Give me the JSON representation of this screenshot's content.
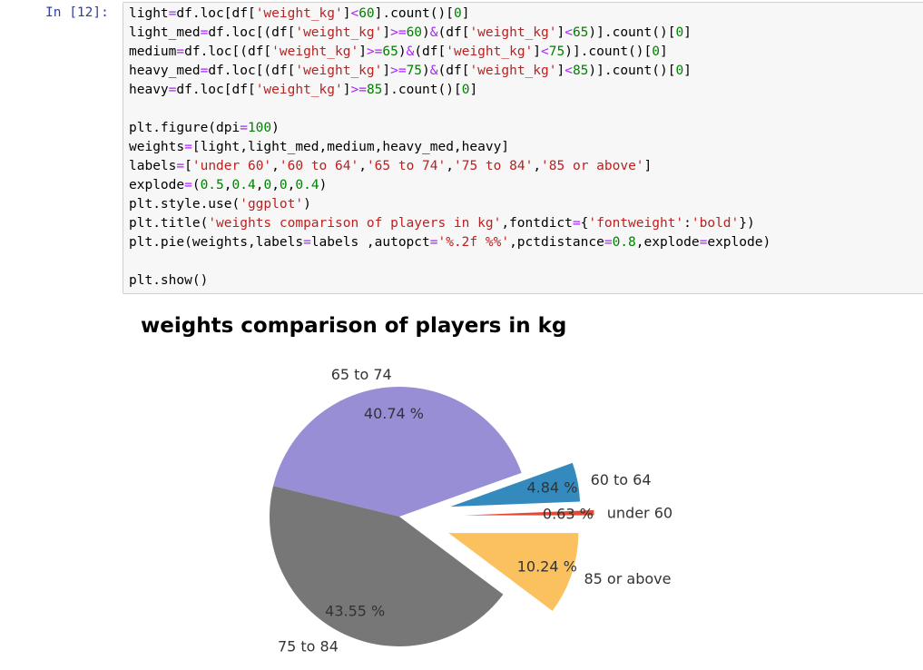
{
  "prompt": "In [12]:",
  "code_lines": [
    [
      {
        "t": "light",
        "c": "plain"
      },
      {
        "t": "=",
        "c": "op"
      },
      {
        "t": "df.loc[df[",
        "c": "plain"
      },
      {
        "t": "'weight_kg'",
        "c": "str"
      },
      {
        "t": "]",
        "c": "plain"
      },
      {
        "t": "<",
        "c": "op"
      },
      {
        "t": "60",
        "c": "num"
      },
      {
        "t": "].count()[",
        "c": "plain"
      },
      {
        "t": "0",
        "c": "num"
      },
      {
        "t": "]",
        "c": "plain"
      }
    ],
    [
      {
        "t": "light_med",
        "c": "plain"
      },
      {
        "t": "=",
        "c": "op"
      },
      {
        "t": "df.loc[(df[",
        "c": "plain"
      },
      {
        "t": "'weight_kg'",
        "c": "str"
      },
      {
        "t": "]",
        "c": "plain"
      },
      {
        "t": ">=",
        "c": "op"
      },
      {
        "t": "60",
        "c": "num"
      },
      {
        "t": ")",
        "c": "plain"
      },
      {
        "t": "&",
        "c": "op"
      },
      {
        "t": "(df[",
        "c": "plain"
      },
      {
        "t": "'weight_kg'",
        "c": "str"
      },
      {
        "t": "]",
        "c": "plain"
      },
      {
        "t": "<",
        "c": "op"
      },
      {
        "t": "65",
        "c": "num"
      },
      {
        "t": ")].count()[",
        "c": "plain"
      },
      {
        "t": "0",
        "c": "num"
      },
      {
        "t": "]",
        "c": "plain"
      }
    ],
    [
      {
        "t": "medium",
        "c": "plain"
      },
      {
        "t": "=",
        "c": "op"
      },
      {
        "t": "df.loc[(df[",
        "c": "plain"
      },
      {
        "t": "'weight_kg'",
        "c": "str"
      },
      {
        "t": "]",
        "c": "plain"
      },
      {
        "t": ">=",
        "c": "op"
      },
      {
        "t": "65",
        "c": "num"
      },
      {
        "t": ")",
        "c": "plain"
      },
      {
        "t": "&",
        "c": "op"
      },
      {
        "t": "(df[",
        "c": "plain"
      },
      {
        "t": "'weight_kg'",
        "c": "str"
      },
      {
        "t": "]",
        "c": "plain"
      },
      {
        "t": "<",
        "c": "op"
      },
      {
        "t": "75",
        "c": "num"
      },
      {
        "t": ")].count()[",
        "c": "plain"
      },
      {
        "t": "0",
        "c": "num"
      },
      {
        "t": "]",
        "c": "plain"
      }
    ],
    [
      {
        "t": "heavy_med",
        "c": "plain"
      },
      {
        "t": "=",
        "c": "op"
      },
      {
        "t": "df.loc[(df[",
        "c": "plain"
      },
      {
        "t": "'weight_kg'",
        "c": "str"
      },
      {
        "t": "]",
        "c": "plain"
      },
      {
        "t": ">=",
        "c": "op"
      },
      {
        "t": "75",
        "c": "num"
      },
      {
        "t": ")",
        "c": "plain"
      },
      {
        "t": "&",
        "c": "op"
      },
      {
        "t": "(df[",
        "c": "plain"
      },
      {
        "t": "'weight_kg'",
        "c": "str"
      },
      {
        "t": "]",
        "c": "plain"
      },
      {
        "t": "<",
        "c": "op"
      },
      {
        "t": "85",
        "c": "num"
      },
      {
        "t": ")].count()[",
        "c": "plain"
      },
      {
        "t": "0",
        "c": "num"
      },
      {
        "t": "]",
        "c": "plain"
      }
    ],
    [
      {
        "t": "heavy",
        "c": "plain"
      },
      {
        "t": "=",
        "c": "op"
      },
      {
        "t": "df.loc[df[",
        "c": "plain"
      },
      {
        "t": "'weight_kg'",
        "c": "str"
      },
      {
        "t": "]",
        "c": "plain"
      },
      {
        "t": ">=",
        "c": "op"
      },
      {
        "t": "85",
        "c": "num"
      },
      {
        "t": "].count()[",
        "c": "plain"
      },
      {
        "t": "0",
        "c": "num"
      },
      {
        "t": "]",
        "c": "plain"
      }
    ],
    [],
    [
      {
        "t": "plt.figure(dpi",
        "c": "plain"
      },
      {
        "t": "=",
        "c": "op"
      },
      {
        "t": "100",
        "c": "num"
      },
      {
        "t": ")",
        "c": "plain"
      }
    ],
    [
      {
        "t": "weights",
        "c": "plain"
      },
      {
        "t": "=",
        "c": "op"
      },
      {
        "t": "[light,light_med,medium,heavy_med,heavy]",
        "c": "plain"
      }
    ],
    [
      {
        "t": "labels",
        "c": "plain"
      },
      {
        "t": "=",
        "c": "op"
      },
      {
        "t": "[",
        "c": "plain"
      },
      {
        "t": "'under 60'",
        "c": "str"
      },
      {
        "t": ",",
        "c": "plain"
      },
      {
        "t": "'60 to 64'",
        "c": "str"
      },
      {
        "t": ",",
        "c": "plain"
      },
      {
        "t": "'65 to 74'",
        "c": "str"
      },
      {
        "t": ",",
        "c": "plain"
      },
      {
        "t": "'75 to 84'",
        "c": "str"
      },
      {
        "t": ",",
        "c": "plain"
      },
      {
        "t": "'85 or above'",
        "c": "str"
      },
      {
        "t": "]",
        "c": "plain"
      }
    ],
    [
      {
        "t": "explode",
        "c": "plain"
      },
      {
        "t": "=",
        "c": "op"
      },
      {
        "t": "(",
        "c": "plain"
      },
      {
        "t": "0.5",
        "c": "num"
      },
      {
        "t": ",",
        "c": "plain"
      },
      {
        "t": "0.4",
        "c": "num"
      },
      {
        "t": ",",
        "c": "plain"
      },
      {
        "t": "0",
        "c": "num"
      },
      {
        "t": ",",
        "c": "plain"
      },
      {
        "t": "0",
        "c": "num"
      },
      {
        "t": ",",
        "c": "plain"
      },
      {
        "t": "0.4",
        "c": "num"
      },
      {
        "t": ")",
        "c": "plain"
      }
    ],
    [
      {
        "t": "plt.style.use(",
        "c": "plain"
      },
      {
        "t": "'ggplot'",
        "c": "str"
      },
      {
        "t": ")",
        "c": "plain"
      }
    ],
    [
      {
        "t": "plt.title(",
        "c": "plain"
      },
      {
        "t": "'weights comparison of players in kg'",
        "c": "str"
      },
      {
        "t": ",fontdict",
        "c": "plain"
      },
      {
        "t": "=",
        "c": "op"
      },
      {
        "t": "{",
        "c": "plain"
      },
      {
        "t": "'fontweight'",
        "c": "str"
      },
      {
        "t": ":",
        "c": "plain"
      },
      {
        "t": "'bold'",
        "c": "str"
      },
      {
        "t": "})",
        "c": "plain"
      }
    ],
    [
      {
        "t": "plt.pie(weights,labels",
        "c": "plain"
      },
      {
        "t": "=",
        "c": "op"
      },
      {
        "t": "labels ,autopct",
        "c": "plain"
      },
      {
        "t": "=",
        "c": "op"
      },
      {
        "t": "'%.2f %%'",
        "c": "str"
      },
      {
        "t": ",pctdistance",
        "c": "plain"
      },
      {
        "t": "=",
        "c": "op"
      },
      {
        "t": "0.8",
        "c": "num"
      },
      {
        "t": ",explode",
        "c": "plain"
      },
      {
        "t": "=",
        "c": "op"
      },
      {
        "t": "explode)",
        "c": "plain"
      }
    ],
    [],
    [
      {
        "t": "plt.show()",
        "c": "plain"
      }
    ]
  ],
  "colors": {
    "op": "#aa22ff",
    "str": "#ba2121",
    "num": "#008000",
    "plain": "#000000"
  },
  "chart_data": {
    "type": "pie",
    "title": "weights comparison of players in kg",
    "slices": [
      {
        "label": "under 60",
        "pct_label": "0.63 %",
        "value": 0.63,
        "explode": 0.5,
        "color": "#E24A33"
      },
      {
        "label": "60 to 64",
        "pct_label": "4.84 %",
        "value": 4.84,
        "explode": 0.4,
        "color": "#348ABD"
      },
      {
        "label": "65 to 74",
        "pct_label": "40.74 %",
        "value": 40.74,
        "explode": 0,
        "color": "#988ED5"
      },
      {
        "label": "75 to 84",
        "pct_label": "43.55 %",
        "value": 43.55,
        "explode": 0,
        "color": "#777777"
      },
      {
        "label": "85 or above",
        "pct_label": "10.24 %",
        "value": 10.24,
        "explode": 0.4,
        "color": "#FBC15E"
      }
    ],
    "startangle": 0,
    "counterclock": true,
    "pctdistance": 0.8,
    "labeldistance": 1.1
  }
}
